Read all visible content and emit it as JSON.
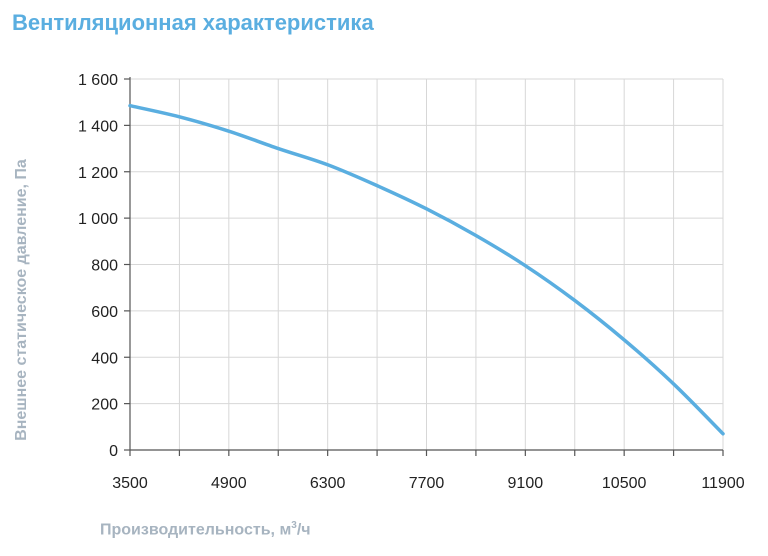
{
  "chart_data": {
    "type": "line",
    "title": "Вентиляционная характеристика",
    "xlabel": "Производительность, м",
    "xlabel_sup": "3",
    "xlabel_tail": "/ч",
    "ylabel": "Внешнее статическое давление, Па",
    "xlim": [
      3500,
      11900
    ],
    "ylim": [
      0,
      1600
    ],
    "x_ticks": [
      3500,
      4900,
      6300,
      7700,
      9100,
      10500,
      11900
    ],
    "x_tick_labels": [
      "3500",
      "4900",
      "6300",
      "7700",
      "9100",
      "10500",
      "11900"
    ],
    "y_ticks": [
      0,
      200,
      400,
      600,
      800,
      1000,
      1200,
      1400,
      1600
    ],
    "y_tick_labels": [
      "0",
      "200",
      "400",
      "600",
      "800",
      "1 000",
      "1 200",
      "1 400",
      "1 600"
    ],
    "x_gridlines": [
      4200,
      4900,
      5600,
      6300,
      7000,
      7700,
      8400,
      9100,
      9800,
      10500,
      11200,
      11900
    ],
    "grid": true,
    "series": [
      {
        "color": "#5aaee0",
        "x": [
          3500,
          4200,
          4900,
          5600,
          6300,
          7000,
          7700,
          8400,
          9100,
          9800,
          10500,
          11200,
          11900
        ],
        "y": [
          1485,
          1437,
          1375,
          1300,
          1230,
          1140,
          1040,
          925,
          795,
          645,
          475,
          285,
          70
        ]
      }
    ]
  }
}
